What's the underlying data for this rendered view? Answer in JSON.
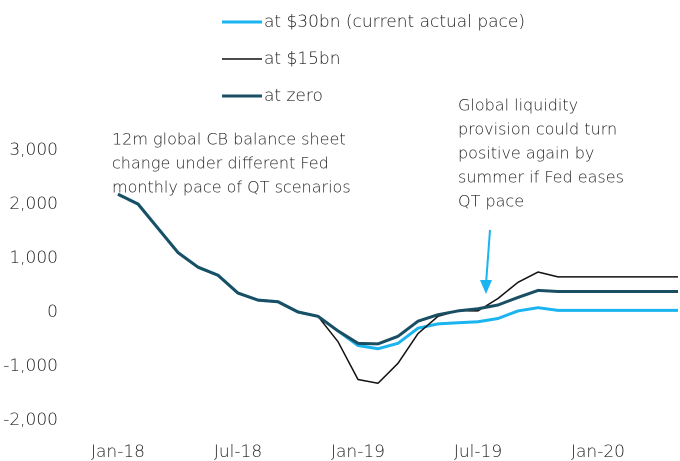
{
  "chart_data": {
    "type": "line",
    "categories": [
      "Jan-18",
      null,
      null,
      null,
      null,
      null,
      "Jul-18",
      null,
      null,
      null,
      null,
      null,
      "Jan-19",
      null,
      null,
      null,
      null,
      null,
      "Jul-19",
      null,
      null,
      null,
      null,
      null,
      "Jan-20",
      null,
      null,
      null,
      null
    ],
    "series": [
      {
        "name": "at $30bn (current actual pace)",
        "color": "#1ab4f0",
        "width": 3,
        "values": [
          2180,
          2000,
          1550,
          1100,
          830,
          680,
          350,
          220,
          190,
          0,
          -80,
          -350,
          -620,
          -680,
          -580,
          -300,
          -220,
          -200,
          -180,
          -120,
          20,
          80,
          30,
          30,
          30,
          30,
          30,
          30,
          30
        ]
      },
      {
        "name": "at $15bn",
        "color": "#111111",
        "width": 1.5,
        "values": [
          2180,
          2000,
          1550,
          1100,
          830,
          680,
          350,
          220,
          190,
          0,
          -80,
          -550,
          -1250,
          -1320,
          -950,
          -400,
          -80,
          20,
          20,
          250,
          550,
          740,
          650,
          650,
          650,
          650,
          650,
          650,
          650
        ]
      },
      {
        "name": "at zero",
        "color": "#1a4f63",
        "width": 3,
        "values": [
          2180,
          2000,
          1550,
          1100,
          830,
          680,
          350,
          220,
          190,
          0,
          -80,
          -350,
          -580,
          -590,
          -450,
          -170,
          -50,
          20,
          60,
          130,
          270,
          400,
          380,
          380,
          380,
          380,
          380,
          380,
          380
        ]
      }
    ],
    "ylim": [
      -2000,
      3000
    ],
    "yticks": [
      {
        "value": -2000,
        "label": "-2,000"
      },
      {
        "value": -1000,
        "label": "-1,000"
      },
      0,
      {
        "value": 1000,
        "label": "1,000"
      },
      {
        "value": 2000,
        "label": "2,000"
      },
      {
        "value": 3000,
        "label": "3,000"
      }
    ],
    "annotations": [
      {
        "lines": [
          "12m global CB balance sheet",
          "change under different Fed",
          "monthly pace of QT scenarios"
        ]
      },
      {
        "lines": [
          "Global liquidity",
          "provision could turn",
          "positive again by",
          "summer if Fed eases",
          "QT pace"
        ]
      }
    ]
  }
}
